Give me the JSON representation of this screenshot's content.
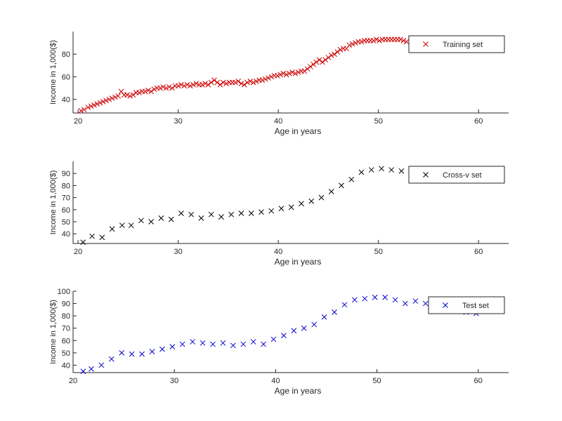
{
  "chart_data": [
    {
      "type": "scatter",
      "xlabel": "Age in years",
      "ylabel": "Income in 1,000($)",
      "xlim": [
        19.5,
        63
      ],
      "ylim": [
        28,
        100
      ],
      "xticks": [
        "20",
        "30",
        "40",
        "50",
        "60"
      ],
      "yticks": [
        "40",
        "60",
        "80"
      ],
      "legend_position": "top-right",
      "series": [
        {
          "name": "Training set",
          "color": "#cc0000",
          "marker": "x",
          "x": [
            20.3,
            20.6,
            21.0,
            21.3,
            21.6,
            21.9,
            22.2,
            22.5,
            22.8,
            23.1,
            23.4,
            23.7,
            24.0,
            24.3,
            24.6,
            24.9,
            25.2,
            25.5,
            25.8,
            26.1,
            26.4,
            26.7,
            27.0,
            27.3,
            27.6,
            27.9,
            28.2,
            28.5,
            28.8,
            29.1,
            29.4,
            29.7,
            30.0,
            30.3,
            30.6,
            30.9,
            31.2,
            31.5,
            31.8,
            32.1,
            32.4,
            32.7,
            33.0,
            33.3,
            33.6,
            33.9,
            34.2,
            34.5,
            34.8,
            35.1,
            35.4,
            35.7,
            36.0,
            36.3,
            36.6,
            36.9,
            37.2,
            37.5,
            37.8,
            38.1,
            38.4,
            38.7,
            39.0,
            39.3,
            39.6,
            39.9,
            40.2,
            40.5,
            40.8,
            41.1,
            41.4,
            41.7,
            42.0,
            42.3,
            42.6,
            42.9,
            43.2,
            43.5,
            43.8,
            44.1,
            44.4,
            44.7,
            45.0,
            45.3,
            45.6,
            45.9,
            46.2,
            46.5,
            46.8,
            47.1,
            47.4,
            47.7,
            48.0,
            48.3,
            48.6,
            48.9,
            49.2,
            49.5,
            49.8,
            50.1,
            50.4,
            50.7,
            51.0,
            51.3,
            51.6,
            51.9,
            52.2,
            52.5,
            52.8
          ],
          "y": [
            30,
            31,
            33,
            34,
            35,
            36,
            37,
            38,
            39,
            40,
            41,
            42,
            43,
            47,
            44,
            44,
            43,
            44,
            46,
            46,
            47,
            47,
            48,
            47,
            49,
            50,
            50,
            51,
            50,
            51,
            50,
            52,
            52,
            53,
            52,
            53,
            52,
            53,
            54,
            53,
            53,
            54,
            53,
            55,
            57,
            55,
            53,
            55,
            54,
            55,
            55,
            55,
            56,
            54,
            53,
            55,
            56,
            55,
            56,
            57,
            57,
            58,
            59,
            60,
            61,
            61,
            62,
            63,
            62,
            63,
            64,
            63,
            64,
            65,
            65,
            67,
            69,
            71,
            73,
            75,
            73,
            75,
            77,
            79,
            80,
            82,
            84,
            85,
            85,
            88,
            89,
            90,
            91,
            91,
            92,
            92,
            92,
            92,
            93,
            92,
            93,
            93,
            93,
            93,
            93,
            93,
            93,
            92,
            91
          ]
        }
      ]
    },
    {
      "type": "scatter",
      "xlabel": "Age in years",
      "ylabel": "Income in 1,000($)",
      "xlim": [
        19.5,
        63
      ],
      "ylim": [
        32,
        100
      ],
      "xticks": [
        "20",
        "30",
        "40",
        "50",
        "60"
      ],
      "yticks": [
        "40",
        "50",
        "60",
        "70",
        "80",
        "90"
      ],
      "legend_position": "top-right",
      "series": [
        {
          "name": "Cross-v set",
          "color": "#000000",
          "marker": "x",
          "x": [
            20.5,
            21.4,
            22.4,
            23.4,
            24.4,
            25.3,
            26.3,
            27.3,
            28.3,
            29.3,
            30.3,
            31.3,
            32.3,
            33.3,
            34.3,
            35.3,
            36.3,
            37.3,
            38.3,
            39.3,
            40.3,
            41.3,
            42.3,
            43.3,
            44.3,
            45.3,
            46.3,
            47.3,
            48.3,
            49.3,
            50.3,
            51.3,
            52.3
          ],
          "y": [
            33,
            38,
            37,
            44,
            47,
            47,
            51,
            50,
            53,
            52,
            57,
            56,
            53,
            56,
            54,
            56,
            57,
            57,
            58,
            59,
            61,
            62,
            65,
            67,
            70,
            75,
            80,
            85,
            91,
            93,
            94,
            93,
            92
          ]
        }
      ]
    },
    {
      "type": "scatter",
      "xlabel": "Age in years",
      "ylabel": "Income in 1,000($)",
      "xlim": [
        20,
        63
      ],
      "ylim": [
        34,
        100
      ],
      "xticks": [
        "20",
        "30",
        "40",
        "50",
        "60"
      ],
      "yticks": [
        "40",
        "50",
        "60",
        "70",
        "80",
        "90",
        "100"
      ],
      "legend_position": "top-right",
      "series": [
        {
          "name": "Test set",
          "color": "#0000cc",
          "marker": "x",
          "x": [
            21.0,
            21.8,
            22.8,
            23.8,
            24.8,
            25.8,
            26.8,
            27.8,
            28.8,
            29.8,
            30.8,
            31.8,
            32.8,
            33.8,
            34.8,
            35.8,
            36.8,
            37.8,
            38.8,
            39.8,
            40.8,
            41.8,
            42.8,
            43.8,
            44.8,
            45.8,
            46.8,
            47.8,
            48.8,
            49.8,
            50.8,
            51.8,
            52.8,
            53.8,
            54.8,
            55.8,
            56.8,
            57.8,
            58.8,
            59.8
          ],
          "y": [
            35,
            37,
            40,
            45,
            50,
            49,
            49,
            51,
            53,
            55,
            57,
            59,
            58,
            57,
            58,
            56,
            57,
            59,
            57,
            61,
            64,
            68,
            70,
            73,
            79,
            83,
            89,
            93,
            94,
            95,
            95,
            93,
            90,
            92,
            90,
            91,
            89,
            86,
            83,
            82
          ]
        }
      ]
    }
  ]
}
